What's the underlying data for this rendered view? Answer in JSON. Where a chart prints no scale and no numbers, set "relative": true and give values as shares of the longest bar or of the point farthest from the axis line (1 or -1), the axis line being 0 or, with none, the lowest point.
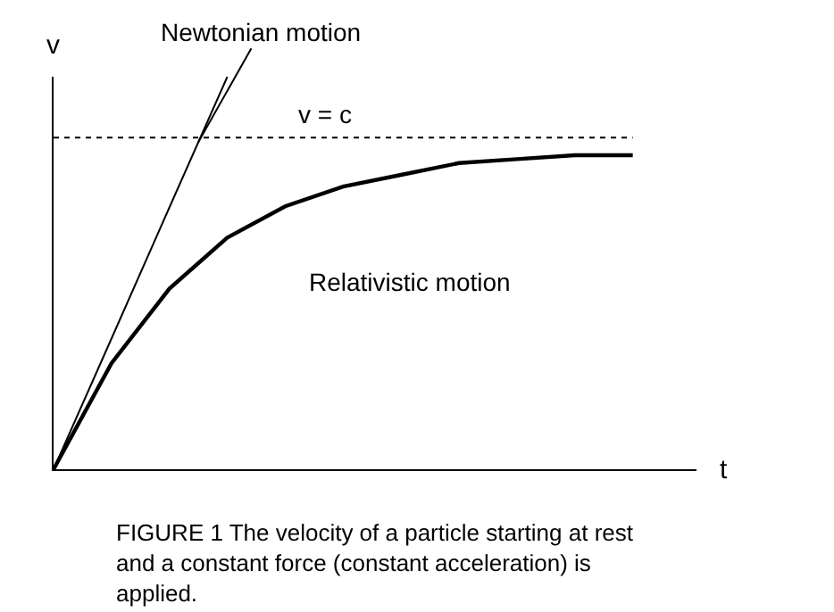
{
  "chart_data": {
    "type": "line",
    "relative": true,
    "xlabel": "t",
    "ylabel": "v",
    "categories": [
      null,
      null,
      null,
      null,
      null,
      null,
      null,
      null,
      null,
      null,
      null
    ],
    "series": [
      {
        "name": "Newtonian motion",
        "color": "#000000",
        "values": [
          0,
          0.333,
          0.667,
          1,
          null,
          null,
          null,
          null,
          null,
          null,
          null
        ]
      },
      {
        "name": "Relativistic motion",
        "color": "#000000",
        "values": [
          0,
          0.27,
          0.46,
          0.59,
          0.67,
          0.72,
          0.75,
          0.78,
          0.79,
          0.8,
          0.8
        ]
      }
    ],
    "ref_lines": [
      {
        "axis": "y",
        "value": 0.845,
        "label": "v = c",
        "line_style": "dotted",
        "color": "#000000"
      }
    ],
    "annotations": [
      "FIGURE 1 The velocity of a particle starting at rest and a constant force (constant acceleration) is applied."
    ],
    "legend": false,
    "marker": "none"
  }
}
